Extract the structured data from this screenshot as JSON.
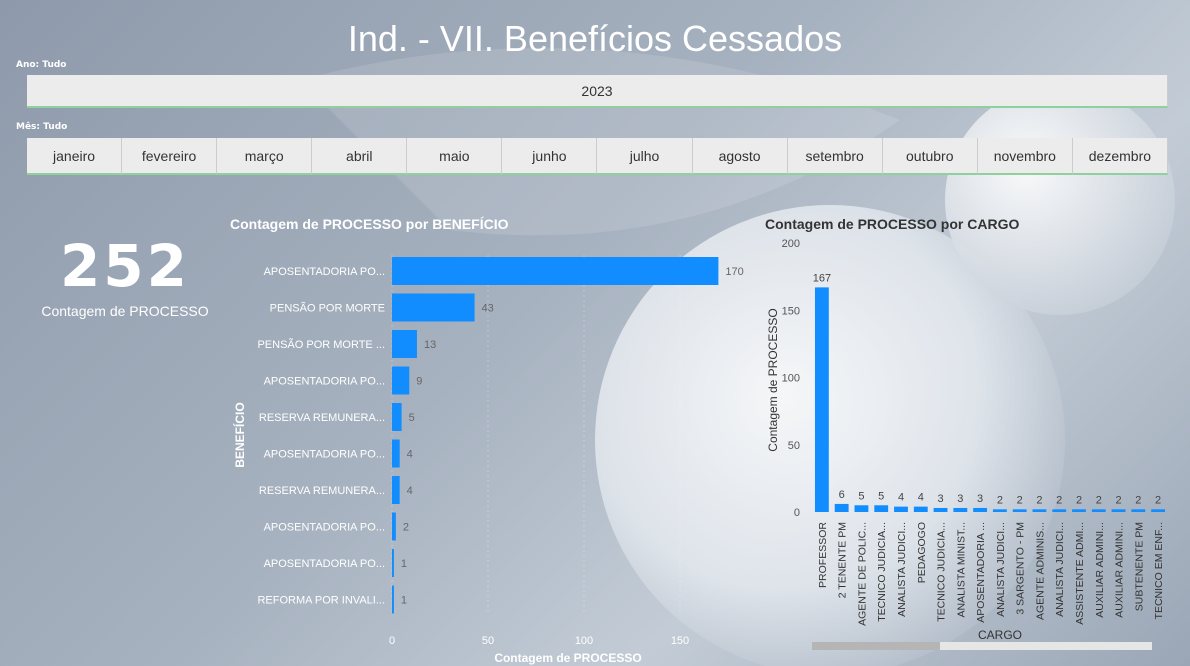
{
  "title": "Ind. - VII. Benefícios Cessados",
  "slicers": [
    {
      "label": "Ano: Tudo",
      "options": [
        "2023"
      ]
    },
    {
      "label": "Mês: Tudo",
      "options": [
        "janeiro",
        "fevereiro",
        "março",
        "abril",
        "maio",
        "junho",
        "julho",
        "agosto",
        "setembro",
        "outubro",
        "novembro",
        "dezembro"
      ]
    }
  ],
  "card": {
    "value": 252,
    "label": "Contagem de PROCESSO"
  },
  "chart_data": [
    {
      "type": "bar",
      "orientation": "horizontal",
      "title": "Contagem de PROCESSO por BENEFÍCIO",
      "x_label": "Contagem de PROCESSO",
      "y_label": "BENEFÍCIO",
      "categories": [
        "APOSENTADORIA PO...",
        "PENSÃO POR MORTE",
        "PENSÃO POR MORTE ...",
        "APOSENTADORIA PO...",
        "RESERVA REMUNERA...",
        "APOSENTADORIA PO...",
        "RESERVA REMUNERA...",
        "APOSENTADORIA PO...",
        "APOSENTADORIA PO...",
        "REFORMA POR INVALI..."
      ],
      "values": [
        170,
        43,
        13,
        9,
        5,
        4,
        4,
        2,
        1,
        1
      ],
      "color": "#118dff",
      "xlim": [
        0,
        180
      ],
      "xticks": [
        0,
        50,
        100,
        150
      ],
      "grid": true
    },
    {
      "type": "bar",
      "orientation": "vertical",
      "title": "Contagem de PROCESSO por CARGO",
      "x_label": "CARGO",
      "y_label": "Contagem de PROCESSO",
      "categories": [
        "PROFESSOR",
        "2 TENENTE PM",
        "AGENTE DE POLIC...",
        "TECNICO JUDICIA...",
        "ANALISTA JUDICI...",
        "PEDAGOGO",
        "TECNICO JUDICIA...",
        "ANALISTA MINIST...",
        "APOSENTADORIA ...",
        "ANALISTA JUDICI...",
        "3 SARGENTO - PM",
        "AGENTE ADMINIS...",
        "ANALISTA JUDICI...",
        "ASSISTENTE ADMI...",
        "AUXILIAR ADMINI...",
        "AUXILIAR ADMINI...",
        "SUBTENENTE PM",
        "TECNICO EM ENF..."
      ],
      "values": [
        167,
        6,
        5,
        5,
        4,
        4,
        3,
        3,
        3,
        2,
        2,
        2,
        2,
        2,
        2,
        2,
        2,
        2
      ],
      "color": "#118dff",
      "ylim": [
        0,
        200
      ],
      "yticks": [
        0,
        50,
        100,
        150,
        200
      ],
      "grid": false
    }
  ]
}
